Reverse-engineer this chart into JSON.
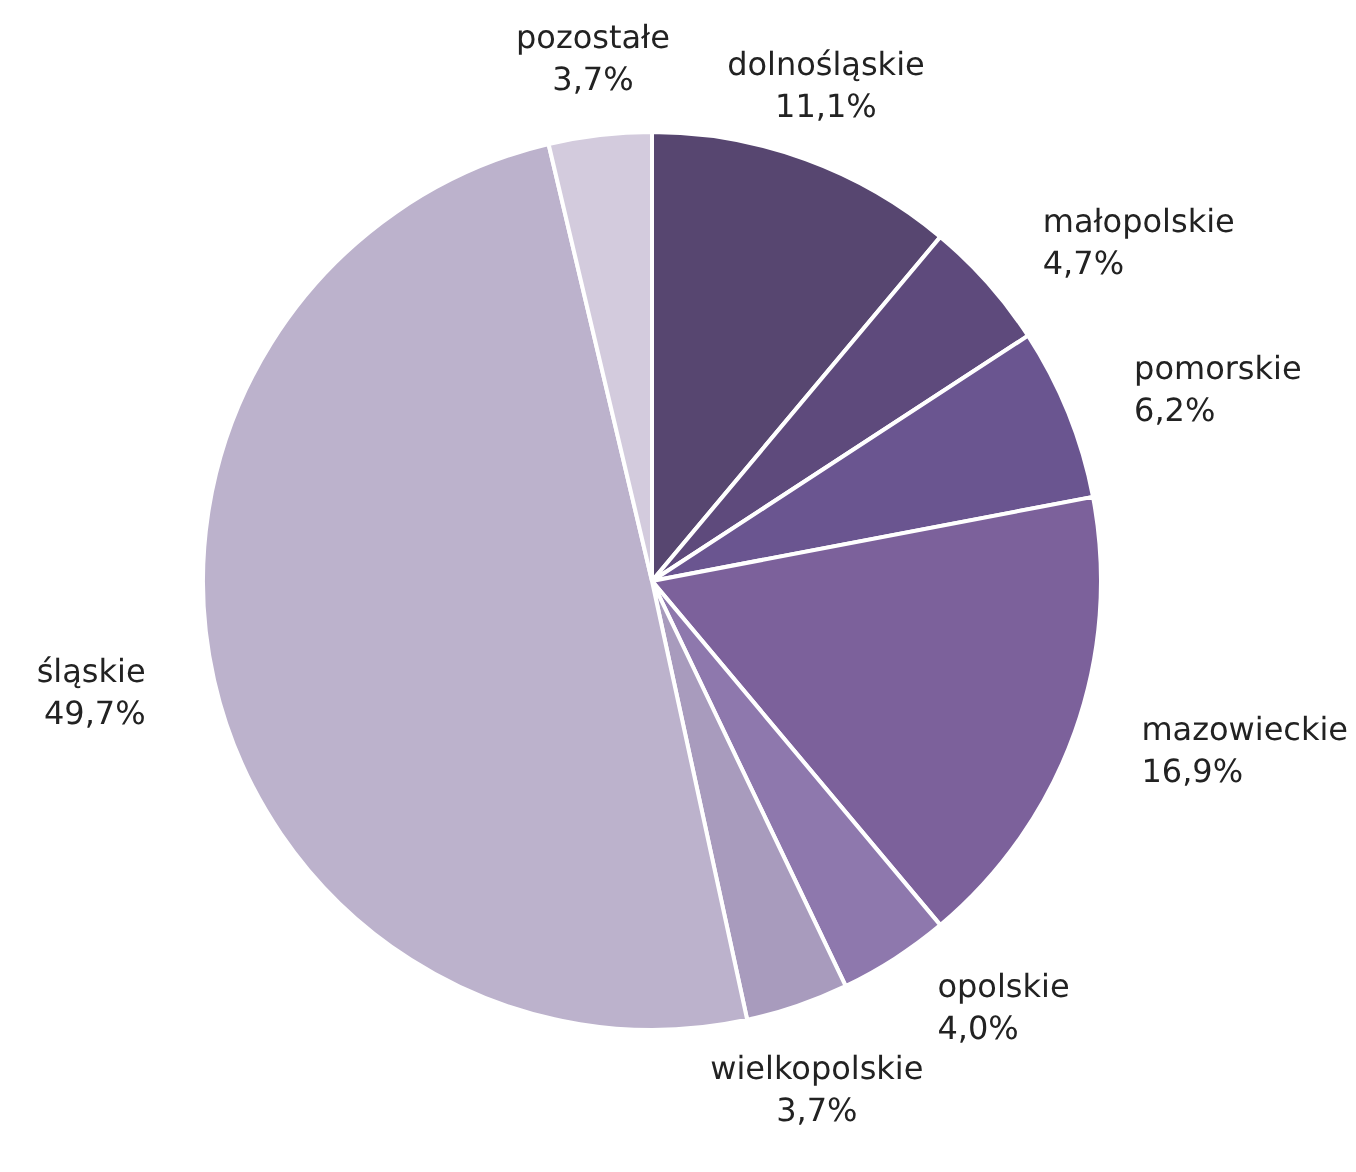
{
  "chart_data": {
    "type": "pie",
    "categories": [
      "dolnośląskie",
      "małopolskie",
      "pomorskie",
      "mazowieckie",
      "opolskie",
      "wielkopolskie",
      "śląskie",
      "pozostałe"
    ],
    "values": [
      11.1,
      4.7,
      6.2,
      16.9,
      4.0,
      3.7,
      49.7,
      3.7
    ],
    "value_labels": [
      "11,1%",
      "4,7%",
      "6,2%",
      "16,9%",
      "4,0%",
      "3,7%",
      "49,7%",
      "3,7%"
    ],
    "colors": [
      "#574670",
      "#5e4a7c",
      "#6a5590",
      "#7c619b",
      "#8e78ad",
      "#a89bbd",
      "#bcb2cc",
      "#d3cbdd"
    ],
    "legend": false
  }
}
